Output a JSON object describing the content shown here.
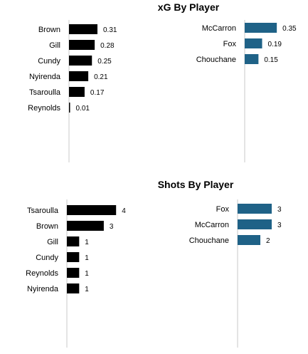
{
  "titles": {
    "xg": "xG By Player",
    "shots": "Shots By Player"
  },
  "colors": {
    "team_a": "#000000",
    "team_b": "#1f6287",
    "axis": "#c8c8c8"
  },
  "chart_data": [
    {
      "type": "bar",
      "orientation": "horizontal",
      "team": "team_a",
      "categories": [
        "Brown",
        "Gill",
        "Cundy",
        "Nyirenda",
        "Tsaroulla",
        "Reynolds"
      ],
      "values": [
        0.31,
        0.28,
        0.25,
        0.21,
        0.17,
        0.01
      ],
      "labels": [
        "0.31",
        "0.28",
        "0.25",
        "0.21",
        "0.17",
        "0.01"
      ]
    },
    {
      "type": "bar",
      "orientation": "horizontal",
      "team": "team_b",
      "categories": [
        "McCarron",
        "Fox",
        "Chouchane"
      ],
      "values": [
        0.35,
        0.19,
        0.15
      ],
      "labels": [
        "0.35",
        "0.19",
        "0.15"
      ]
    },
    {
      "type": "bar",
      "orientation": "horizontal",
      "team": "team_a",
      "categories": [
        "Tsaroulla",
        "Brown",
        "Gill",
        "Cundy",
        "Reynolds",
        "Nyirenda"
      ],
      "values": [
        4,
        3,
        1,
        1,
        1,
        1
      ],
      "labels": [
        "4",
        "3",
        "1",
        "1",
        "1",
        "1"
      ]
    },
    {
      "type": "bar",
      "orientation": "horizontal",
      "team": "team_b",
      "categories": [
        "Fox",
        "McCarron",
        "Chouchane"
      ],
      "values": [
        3,
        3,
        2
      ],
      "labels": [
        "3",
        "3",
        "2"
      ]
    }
  ]
}
